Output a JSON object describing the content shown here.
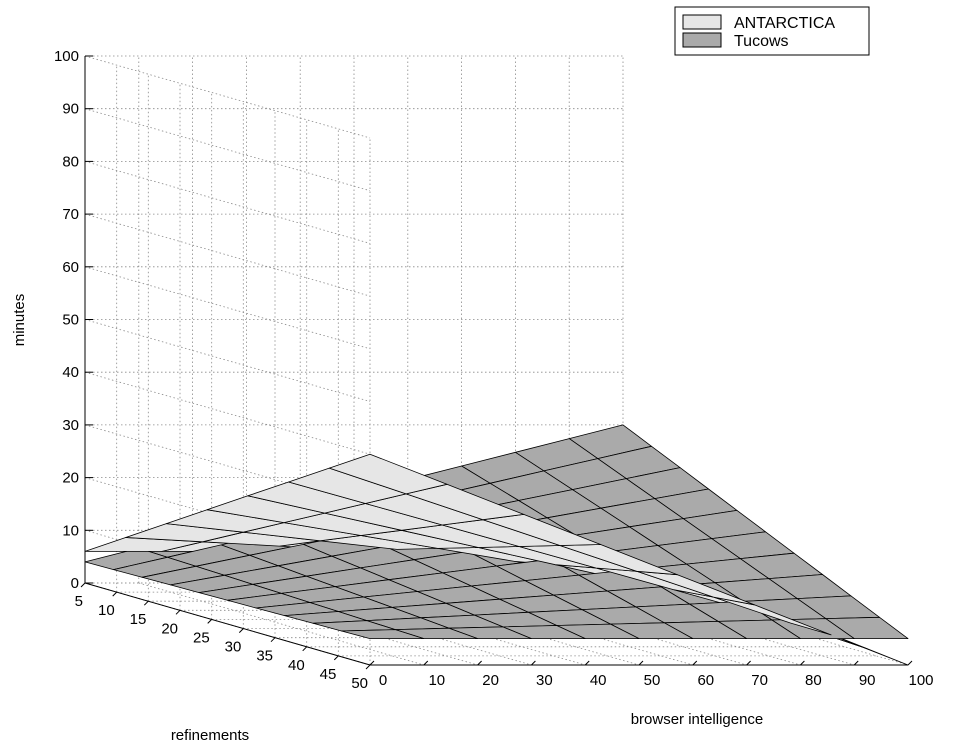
{
  "chart_data": {
    "type": "surface",
    "title": "",
    "xlabel": "browser intelligence",
    "ylabel": "refinements",
    "zlabel": "minutes",
    "xlim": [
      0,
      100
    ],
    "ylim": [
      5,
      50
    ],
    "zlim": [
      0,
      100
    ],
    "xticks": [
      "0",
      "10",
      "20",
      "30",
      "40",
      "50",
      "60",
      "70",
      "80",
      "90",
      "100"
    ],
    "yticks": [
      "5",
      "10",
      "15",
      "20",
      "25",
      "30",
      "35",
      "40",
      "45",
      "50"
    ],
    "zticks": [
      "0",
      "10",
      "20",
      "30",
      "40",
      "50",
      "60",
      "70",
      "80",
      "90",
      "100"
    ],
    "grid": true,
    "legend_position": "top-right",
    "series": [
      {
        "name": "ANTARCTICA",
        "color": "#e6e6e6",
        "corners": {
          "x0_y5": 6,
          "x0_y50": 40,
          "x100_y5": 6,
          "x100_y50": 0
        },
        "grid_lines": 7
      },
      {
        "name": "Tucows",
        "color": "#aaaaaa",
        "corners": {
          "x0_y5": 4,
          "x0_y50": 5,
          "x100_y5": 30,
          "x100_y50": 5
        },
        "grid_lines": 10
      }
    ]
  }
}
